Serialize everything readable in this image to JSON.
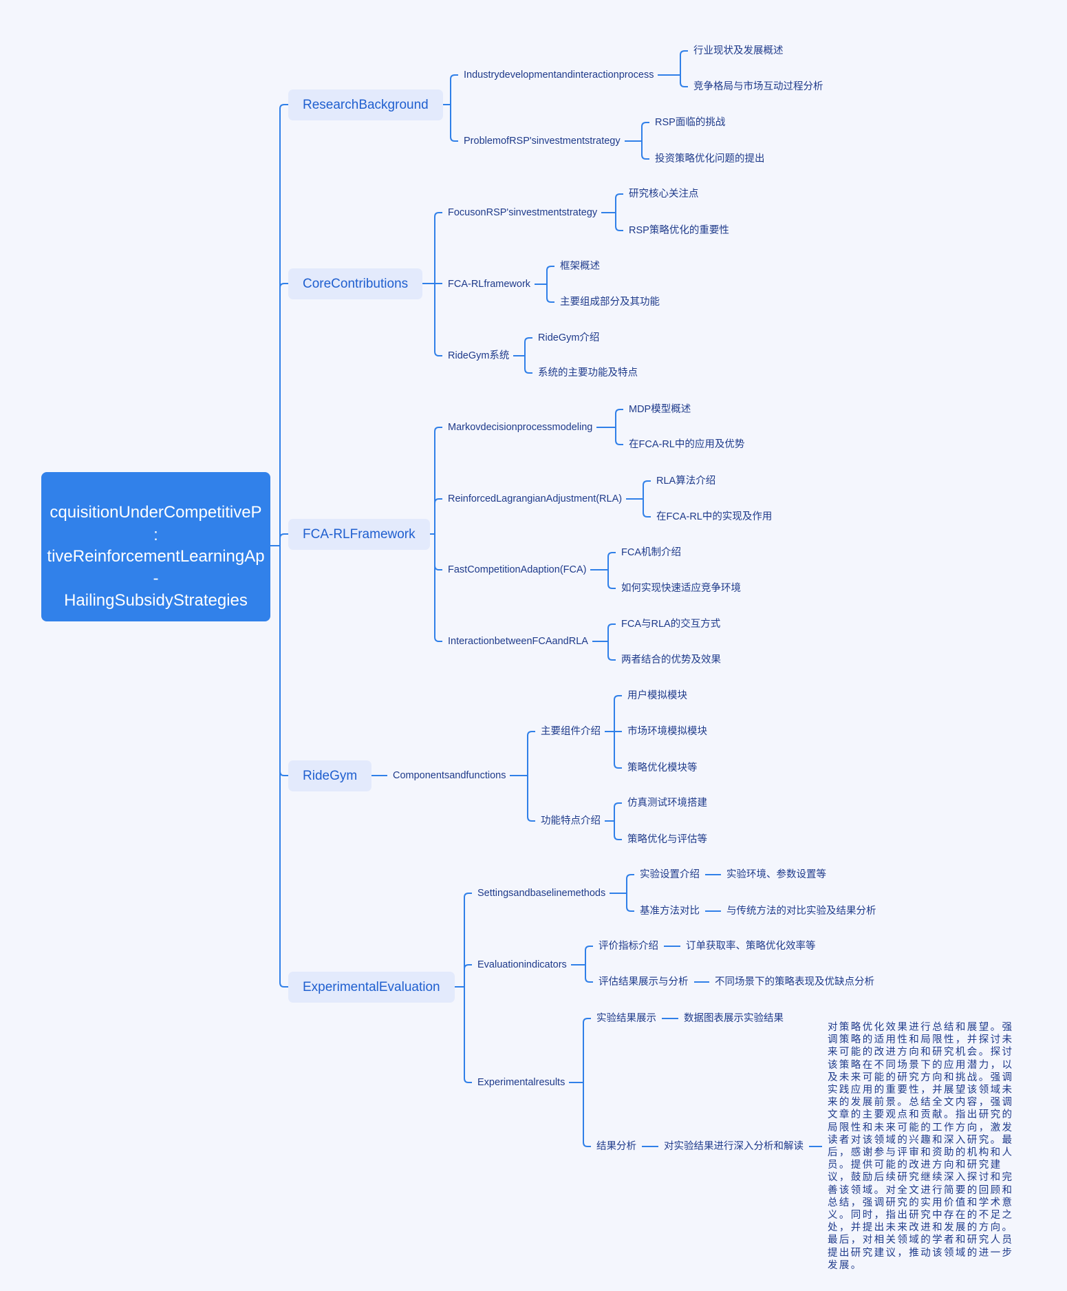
{
  "colors": {
    "background": "#f4f6fd",
    "root_fill": "#3181ea",
    "branch_fill": "#e3eafc",
    "branch_text": "#1f5fcf",
    "node_text": "#1e3a8a",
    "line": "#2f7fe8"
  },
  "root": {
    "lines": [
      "cquisitionUnderCompetitiveP",
      ":",
      "tiveReinforcementLearningAp",
      "-",
      "HailingSubsidyStrategies"
    ]
  },
  "branches": [
    {
      "label": "ResearchBackground",
      "children": [
        {
          "label": "Industrydevelopmentandinteractionprocess",
          "children": [
            {
              "label": "行业现状及发展概述"
            },
            {
              "label": "竞争格局与市场互动过程分析"
            }
          ]
        },
        {
          "label": "ProblemofRSP'sinvestmentstrategy",
          "children": [
            {
              "label": "RSP面临的挑战"
            },
            {
              "label": "投资策略优化问题的提出"
            }
          ]
        }
      ]
    },
    {
      "label": "CoreContributions",
      "children": [
        {
          "label": "FocusonRSP'sinvestmentstrategy",
          "children": [
            {
              "label": "研究核心关注点"
            },
            {
              "label": "RSP策略优化的重要性"
            }
          ]
        },
        {
          "label": "FCA-RLframework",
          "children": [
            {
              "label": "框架概述"
            },
            {
              "label": "主要组成部分及其功能"
            }
          ]
        },
        {
          "label": "RideGym系统",
          "children": [
            {
              "label": "RideGym介绍"
            },
            {
              "label": "系统的主要功能及特点"
            }
          ]
        }
      ]
    },
    {
      "label": "FCA-RLFramework",
      "children": [
        {
          "label": "Markovdecisionprocessmodeling",
          "children": [
            {
              "label": "MDP模型概述"
            },
            {
              "label": "在FCA-RL中的应用及优势"
            }
          ]
        },
        {
          "label": "ReinforcedLagrangianAdjustment(RLA)",
          "children": [
            {
              "label": "RLA算法介绍"
            },
            {
              "label": "在FCA-RL中的实现及作用"
            }
          ]
        },
        {
          "label": "FastCompetitionAdaption(FCA)",
          "children": [
            {
              "label": "FCA机制介绍"
            },
            {
              "label": "如何实现快速适应竞争环境"
            }
          ]
        },
        {
          "label": "InteractionbetweenFCAandRLA",
          "children": [
            {
              "label": "FCA与RLA的交互方式"
            },
            {
              "label": "两者结合的优势及效果"
            }
          ]
        }
      ]
    },
    {
      "label": "RideGym",
      "children": [
        {
          "label": "Componentsandfunctions",
          "children": [
            {
              "label": "主要组件介绍",
              "children": [
                {
                  "label": "用户模拟模块"
                },
                {
                  "label": "市场环境模拟模块"
                },
                {
                  "label": "策略优化模块等"
                }
              ]
            },
            {
              "label": "功能特点介绍",
              "children": [
                {
                  "label": "仿真测试环境搭建"
                },
                {
                  "label": "策略优化与评估等"
                }
              ]
            }
          ]
        }
      ]
    },
    {
      "label": "ExperimentalEvaluation",
      "children": [
        {
          "label": "Settingsandbaselinemethods",
          "children": [
            {
              "label": "实验设置介绍",
              "children": [
                {
                  "label": "实验环境、参数设置等"
                }
              ]
            },
            {
              "label": "基准方法对比",
              "children": [
                {
                  "label": "与传统方法的对比实验及结果分析"
                }
              ]
            }
          ]
        },
        {
          "label": "Evaluationindicators",
          "children": [
            {
              "label": "评价指标介绍",
              "children": [
                {
                  "label": "订单获取率、策略优化效率等"
                }
              ]
            },
            {
              "label": "评估结果展示与分析",
              "children": [
                {
                  "label": "不同场景下的策略表现及优缺点分析"
                }
              ]
            }
          ]
        },
        {
          "label": "Experimentalresults",
          "children": [
            {
              "label": "实验结果展示",
              "children": [
                {
                  "label": "数据图表展示实验结果"
                }
              ]
            },
            {
              "label": "结果分析",
              "children": [
                {
                  "label": "对实验结果进行深入分析和解读",
                  "children": [
                    {
                      "label": "对策略优化效果进行总结和展望。强调策略的适用性和局限性，并探讨未来可能的改进方向和研究机会。探讨该策略在不同场景下的应用潜力，以及未来可能的研究方向和挑战。强调实践应用的重要性，并展望该领域未来的发展前景。总结全文内容，强调文章的主要观点和贡献。指出研究的局限性和未来可能的工作方向，激发读者对该领域的兴趣和深入研究。最后，感谢参与评审和资助的机构和人员。提供可能的改进方向和研究建议，鼓励后续研究继续深入探讨和完善该领域。对全文进行简要的回顾和总结，强调研究的实用价值和学术意义。同时，指出研究中存在的不足之处，并提出未来改进和发展的方向。最后，对相关领域的学者和研究人员提出研究建议，推动该领域的进一步发展。"
                    }
                  ]
                }
              ]
            }
          ]
        }
      ]
    }
  ]
}
